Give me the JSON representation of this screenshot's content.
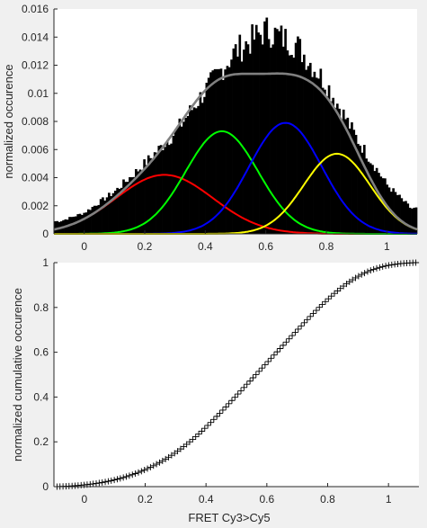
{
  "chart_data": [
    {
      "type": "bar",
      "xlim": [
        -0.1,
        1.1
      ],
      "ylim": [
        0,
        0.016
      ],
      "xticks": [
        "0",
        "0.2",
        "0.4",
        "0.6",
        "0.8",
        "1"
      ],
      "yticks": [
        "0",
        "0.002",
        "0.004",
        "0.006",
        "0.008",
        "0.01",
        "0.012",
        "0.014",
        "0.016"
      ],
      "xlabel": "",
      "ylabel": "normalized occurence",
      "histogram": {
        "color": "#000000",
        "x": [
          -0.08,
          0,
          0.1,
          0.2,
          0.3,
          0.4,
          0.5,
          0.6,
          0.7,
          0.8,
          0.9,
          1.0,
          1.08
        ],
        "y": [
          0.0009,
          0.0015,
          0.003,
          0.005,
          0.0072,
          0.0102,
          0.013,
          0.0145,
          0.0135,
          0.0107,
          0.0068,
          0.0035,
          0.0018
        ]
      },
      "series": [
        {
          "color": "#ff0000",
          "mu": 0.265,
          "sigma": 0.16,
          "amplitude": 0.0042
        },
        {
          "color": "#00ff00",
          "mu": 0.455,
          "sigma": 0.12,
          "amplitude": 0.0073
        },
        {
          "color": "#0000ff",
          "mu": 0.665,
          "sigma": 0.12,
          "amplitude": 0.0079
        },
        {
          "color": "#ffff00",
          "mu": 0.835,
          "sigma": 0.11,
          "amplitude": 0.0057
        },
        {
          "color": "#808080",
          "role": "sum"
        }
      ]
    },
    {
      "type": "scatter",
      "marker": "+",
      "xlim": [
        -0.1,
        1.1
      ],
      "ylim": [
        0,
        1
      ],
      "xticks": [
        "0",
        "0.2",
        "0.4",
        "0.6",
        "0.8",
        "1"
      ],
      "yticks": [
        "0",
        "0.2",
        "0.4",
        "0.6",
        "0.8",
        "1"
      ],
      "xlabel": "FRET Cy3>Cy5",
      "ylabel": "normalized cumulative occurence",
      "x_range": [
        -0.09,
        1.09
      ],
      "point_count": 120
    }
  ]
}
